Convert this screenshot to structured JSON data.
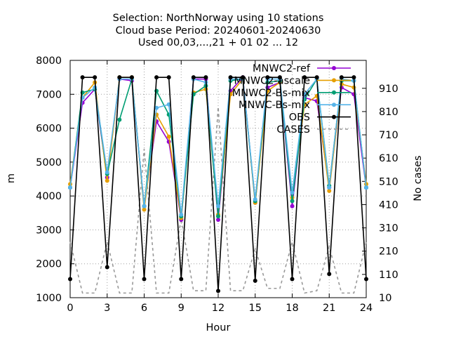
{
  "chart_data": {
    "type": "line",
    "title_lines": [
      "Selection: NorthNorway using    10 stations",
      "Cloud base   Period: 20240601-20240630",
      "Used 00,03,...,21 + 01 02 ... 12"
    ],
    "xlabel": "Hour",
    "ylabel": "m",
    "y2label": "No cases",
    "xlim": [
      0,
      24
    ],
    "ylim": [
      1000,
      8000
    ],
    "y2lim": [
      10,
      1030
    ],
    "x_ticks": [
      0,
      3,
      6,
      9,
      12,
      15,
      18,
      21,
      24
    ],
    "y_ticks": [
      1000,
      2000,
      3000,
      4000,
      5000,
      6000,
      7000,
      8000
    ],
    "y2_ticks": [
      10,
      110,
      210,
      310,
      410,
      510,
      610,
      710,
      810,
      910
    ],
    "grid": true,
    "legend_position": "top-right",
    "x": [
      0,
      1,
      2,
      3,
      4,
      5,
      6,
      7,
      8,
      9,
      10,
      11,
      12,
      13,
      14,
      15,
      16,
      17,
      18,
      19,
      20,
      21,
      22,
      23,
      24
    ],
    "series": [
      {
        "name": "MNWC2-ref",
        "color": "#9400d3",
        "axis": "y",
        "marker": "circle",
        "dash": false,
        "values": [
          4250,
          6750,
          7150,
          4550,
          7450,
          7400,
          3700,
          6200,
          5600,
          3300,
          7450,
          7450,
          3300,
          7100,
          7500,
          3800,
          7200,
          7350,
          3700,
          6900,
          6800,
          4250,
          7200,
          7000,
          4250
        ]
      },
      {
        "name": "MNWC2-ascale",
        "color": "#e69f00",
        "axis": "y",
        "marker": "circle",
        "dash": false,
        "values": [
          4350,
          6900,
          7350,
          4450,
          7500,
          7500,
          3600,
          6400,
          5750,
          3350,
          7050,
          7150,
          3450,
          7000,
          7450,
          3800,
          7100,
          7350,
          3950,
          6700,
          6950,
          4150,
          7300,
          7200,
          4350
        ]
      },
      {
        "name": "MNWC2-Bs-mix",
        "color": "#009e73",
        "axis": "y",
        "marker": "circle",
        "dash": false,
        "values": [
          4250,
          7050,
          7150,
          4650,
          6250,
          7450,
          3700,
          7100,
          6400,
          3400,
          7000,
          7250,
          3400,
          7400,
          7450,
          3850,
          7350,
          7400,
          3850,
          6850,
          7450,
          4300,
          7400,
          7400,
          4250
        ]
      },
      {
        "name": "MNWC-Bs-mix",
        "color": "#56b4e9",
        "axis": "y",
        "marker": "circle",
        "dash": false,
        "values": [
          4250,
          6900,
          7200,
          4700,
          7450,
          7450,
          3700,
          6600,
          6700,
          3450,
          7450,
          7350,
          3700,
          7450,
          7450,
          3900,
          7450,
          7450,
          4100,
          7000,
          7450,
          4250,
          7450,
          7400,
          4250
        ]
      },
      {
        "name": "OBS",
        "color": "#000000",
        "axis": "y",
        "marker": "circle",
        "dash": false,
        "values": [
          1550,
          7500,
          7500,
          1900,
          7500,
          7500,
          1550,
          7500,
          7500,
          1550,
          7500,
          7500,
          1200,
          7500,
          7500,
          1500,
          7500,
          7500,
          1550,
          7500,
          7500,
          1700,
          7500,
          7500,
          1550
        ]
      },
      {
        "name": "CASES",
        "color": "#999999",
        "axis": "y2",
        "marker": "none",
        "dash": true,
        "values": [
          250,
          30,
          30,
          250,
          30,
          30,
          650,
          30,
          30,
          350,
          40,
          40,
          830,
          40,
          40,
          220,
          50,
          50,
          250,
          30,
          40,
          230,
          30,
          30,
          250
        ]
      }
    ]
  }
}
